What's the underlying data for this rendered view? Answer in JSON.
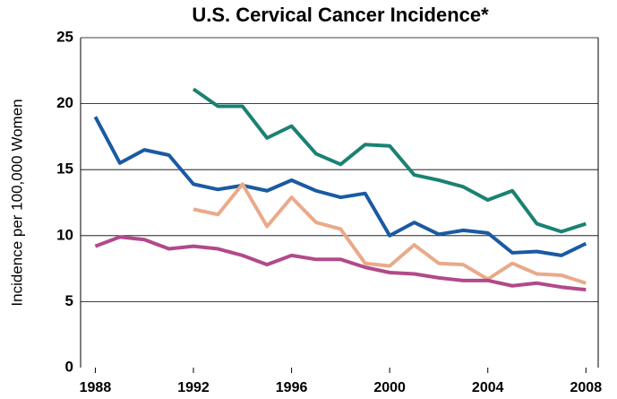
{
  "chart_data": {
    "type": "line",
    "title": "U.S. Cervical Cancer Incidence*",
    "ylabel": "Incidence per 100,000 Women",
    "x": [
      1988,
      1989,
      1990,
      1991,
      1992,
      1993,
      1994,
      1995,
      1996,
      1997,
      1998,
      1999,
      2000,
      2001,
      2002,
      2003,
      2004,
      2005,
      2006,
      2007,
      2008
    ],
    "series": [
      {
        "color": "#1b8272",
        "values": [
          null,
          null,
          null,
          null,
          21.1,
          19.8,
          19.8,
          17.4,
          18.3,
          16.2,
          15.4,
          16.9,
          16.8,
          14.6,
          14.2,
          13.7,
          12.7,
          13.4,
          10.9,
          10.3,
          10.9
        ]
      },
      {
        "color": "#1a5aa2",
        "values": [
          19.0,
          15.5,
          16.5,
          16.1,
          13.9,
          13.5,
          13.8,
          13.4,
          14.2,
          13.4,
          12.9,
          13.2,
          10.0,
          11.0,
          10.1,
          10.4,
          10.2,
          8.7,
          8.8,
          8.5,
          9.4
        ]
      },
      {
        "color": "#e9aa8a",
        "values": [
          null,
          null,
          null,
          null,
          12.0,
          11.6,
          13.9,
          10.7,
          12.9,
          11.0,
          10.5,
          7.9,
          7.7,
          9.3,
          7.9,
          7.8,
          6.7,
          7.9,
          7.1,
          7.0,
          6.4
        ]
      },
      {
        "color": "#b2498a",
        "values": [
          9.2,
          9.9,
          9.7,
          9.0,
          9.2,
          9.0,
          8.5,
          7.8,
          8.5,
          8.2,
          8.2,
          7.6,
          7.2,
          7.1,
          6.8,
          6.6,
          6.6,
          6.2,
          6.4,
          6.1,
          5.9
        ]
      }
    ],
    "xlim": [
      1987.4,
      2008.5
    ],
    "xticks": [
      1988,
      1992,
      1996,
      2000,
      2004,
      2008
    ],
    "ylim": [
      0,
      25
    ],
    "yticks": [
      0,
      5,
      10,
      15,
      20,
      25
    ],
    "grid": true
  }
}
